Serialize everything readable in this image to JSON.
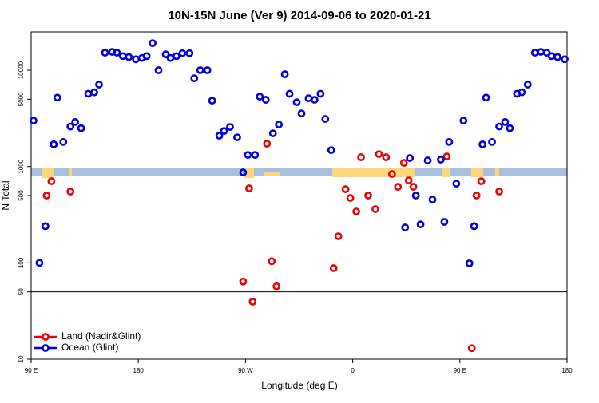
{
  "chart_data": {
    "type": "scatter",
    "title": "10N-15N June (Ver 9)   2014-09-06 to 2020-01-21",
    "xlabel": "Longitude (deg E)",
    "ylabel": "N Total",
    "xlim": [
      90,
      540
    ],
    "xticks": [
      {
        "value": 90,
        "label": "90 E"
      },
      {
        "value": 180,
        "label": "180"
      },
      {
        "value": 270,
        "label": "90 W"
      },
      {
        "value": 360,
        "label": "0"
      },
      {
        "value": 450,
        "label": "90 E"
      },
      {
        "value": 540,
        "label": "180"
      }
    ],
    "ylim": [
      10,
      25000
    ],
    "yticks": [
      10,
      50,
      100,
      500,
      1000,
      5000,
      10000
    ],
    "log_y": true,
    "reference_line": 50,
    "legend": "bottom left",
    "series": [
      {
        "name": "Land (Nadir&Glint)",
        "color": "#ee0000",
        "x": [
          103,
          107,
          123,
          268,
          273,
          276,
          288,
          292,
          296,
          344,
          348,
          354,
          358,
          363,
          367,
          373,
          379,
          382,
          388,
          393,
          398,
          403,
          407,
          411,
          439,
          460,
          464,
          468,
          483
        ],
        "values": [
          500,
          704,
          550,
          64,
          593,
          39.5,
          1726,
          104,
          57,
          88,
          189,
          582,
          472,
          341,
          1248,
          500,
          361,
          1346,
          1248,
          836,
          616,
          1092,
          718,
          616,
          1272,
          13,
          500,
          704,
          550
        ]
      },
      {
        "name": "Ocean (Glint)",
        "color": "#0000dd",
        "x": [
          92,
          97,
          102,
          109,
          112,
          117,
          123,
          127,
          132,
          138,
          143,
          147,
          152,
          158,
          162,
          167,
          172,
          178,
          183,
          187,
          192,
          197,
          203,
          207,
          212,
          217,
          223,
          227,
          232,
          238,
          242,
          248,
          252,
          257,
          263,
          268,
          272,
          278,
          282,
          287,
          293,
          298,
          303,
          307,
          313,
          317,
          323,
          328,
          333,
          337,
          342,
          404,
          408,
          413,
          417,
          423,
          427,
          434,
          437,
          441,
          447,
          453,
          458,
          462,
          469,
          472,
          477,
          483,
          488,
          492,
          498,
          502,
          507,
          513,
          518,
          523,
          527,
          532,
          538
        ],
        "values": [
          3000,
          100,
          240,
          1700,
          5200,
          1800,
          2600,
          2900,
          2500,
          5700,
          5900,
          7100,
          15200,
          15500,
          15200,
          14000,
          13700,
          13000,
          13400,
          14000,
          19100,
          10000,
          14600,
          13400,
          14000,
          15000,
          15000,
          8250,
          10000,
          10000,
          4830,
          2090,
          2340,
          2575,
          2010,
          869,
          1320,
          1320,
          5320,
          4930,
          2210,
          2730,
          9080,
          5700,
          4650,
          3560,
          5120,
          4930,
          5700,
          3120,
          1480,
          233,
          1224,
          500,
          251,
          1156,
          454,
          1180,
          266,
          1800,
          665,
          3000,
          99,
          240,
          1700,
          5200,
          1800,
          2600,
          2900,
          2500,
          5700,
          5900,
          7100,
          15200,
          15500,
          15200,
          14000,
          13700,
          13000
        ]
      }
    ]
  }
}
